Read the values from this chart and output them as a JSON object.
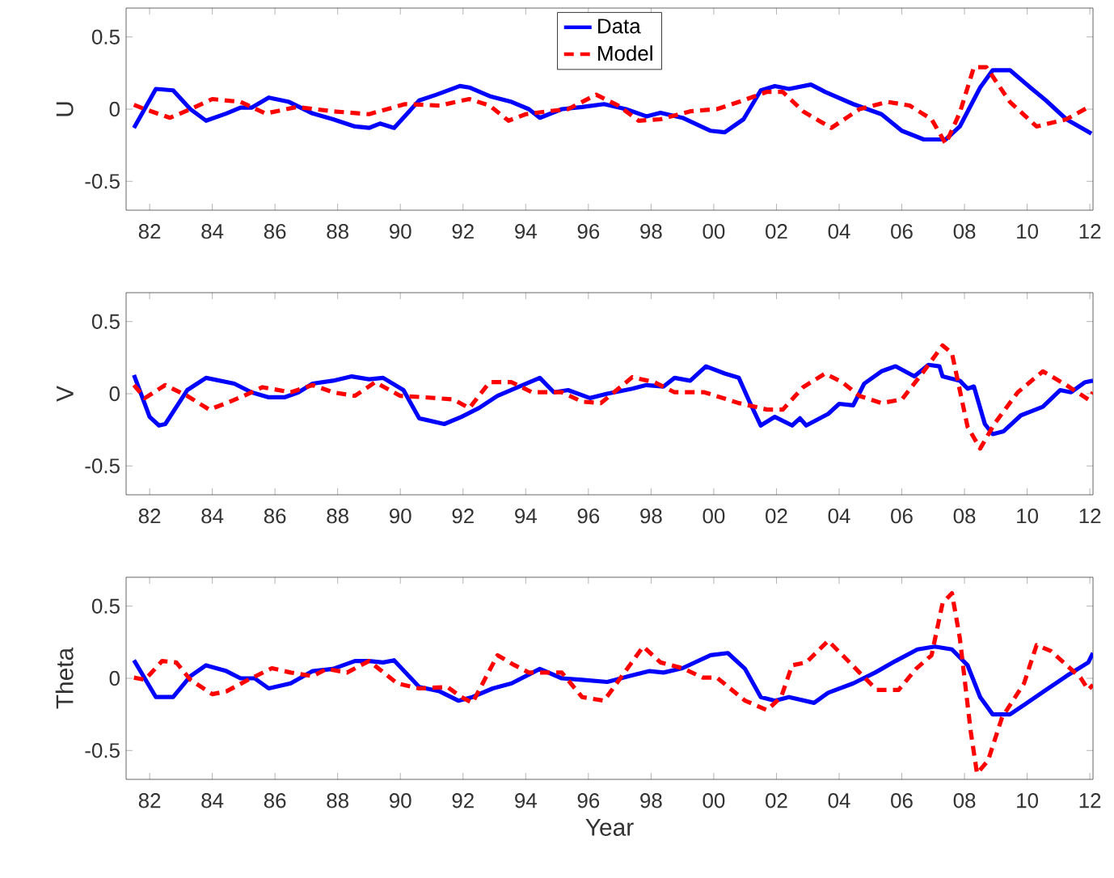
{
  "chart_data": [
    {
      "type": "line",
      "ylabel": "U",
      "legend": "top",
      "marker": "none",
      "xlim": [
        1981.25,
        2012.1
      ],
      "ylim": [
        -0.7,
        0.7
      ],
      "xticks": [
        {
          "value": 1982,
          "label": "82"
        },
        {
          "value": 1984,
          "label": "84"
        },
        {
          "value": 1986,
          "label": "86"
        },
        {
          "value": 1988,
          "label": "88"
        },
        {
          "value": 1990,
          "label": "90"
        },
        {
          "value": 1992,
          "label": "92"
        },
        {
          "value": 1994,
          "label": "94"
        },
        {
          "value": 1996,
          "label": "96"
        },
        {
          "value": 1998,
          "label": "98"
        },
        {
          "value": 2000,
          "label": "00"
        },
        {
          "value": 2002,
          "label": "02"
        },
        {
          "value": 2004,
          "label": "04"
        },
        {
          "value": 2006,
          "label": "06"
        },
        {
          "value": 2008,
          "label": "08"
        },
        {
          "value": 2010,
          "label": "10"
        },
        {
          "value": 2012,
          "label": "12"
        }
      ],
      "yticks": [
        -0.5,
        0,
        0.5
      ],
      "series": [
        {
          "name": "Data",
          "color": "#0000ff",
          "line_style": "solid",
          "x": [
            1981.5,
            1982.2,
            1982.75,
            1983.3,
            1983.8,
            1984.45,
            1984.9,
            1985.25,
            1985.8,
            1986.45,
            1987.2,
            1987.85,
            1988.55,
            1989.0,
            1989.35,
            1989.8,
            1990.6,
            1991.15,
            1991.9,
            1992.2,
            1992.85,
            1993.55,
            1994.1,
            1994.45,
            1995.15,
            1995.8,
            1996.5,
            1997.2,
            1997.85,
            1998.3,
            1999.0,
            1999.9,
            2000.35,
            2000.95,
            2001.5,
            2001.95,
            2002.4,
            2003.1,
            2003.55,
            2004.45,
            2005.35,
            2006.0,
            2006.7,
            2007.4,
            2007.85,
            2008.5,
            2008.9,
            2009.45,
            2010.1,
            2010.6,
            2011.25,
            2012.05
          ],
          "values": [
            -0.13,
            0.14,
            0.13,
            0,
            -0.08,
            -0.03,
            0.01,
            0.01,
            0.08,
            0.05,
            -0.03,
            -0.07,
            -0.12,
            -0.13,
            -0.1,
            -0.13,
            0.06,
            0.1,
            0.16,
            0.15,
            0.09,
            0.05,
            0,
            -0.06,
            0,
            0.015,
            0.035,
            0,
            -0.05,
            -0.025,
            -0.06,
            -0.15,
            -0.16,
            -0.07,
            0.13,
            0.16,
            0.14,
            0.17,
            0.12,
            0.035,
            -0.035,
            -0.15,
            -0.21,
            -0.21,
            -0.12,
            0.15,
            0.27,
            0.27,
            0.15,
            0.06,
            -0.07,
            -0.17
          ]
        },
        {
          "name": "Model",
          "color": "#ff0000",
          "line_style": "dashed",
          "x": [
            1981.5,
            1981.85,
            1982.65,
            1983.3,
            1984.0,
            1984.9,
            1985.7,
            1986.7,
            1987.85,
            1989.0,
            1990.15,
            1991.25,
            1992.2,
            1992.85,
            1993.45,
            1994.0,
            1994.7,
            1995.35,
            1996.25,
            1996.95,
            1997.6,
            1998.3,
            1999.25,
            2000.1,
            2000.8,
            2001.7,
            2002.2,
            2002.85,
            2003.75,
            2004.65,
            2005.55,
            2006.25,
            2006.95,
            2007.4,
            2007.85,
            2008.3,
            2008.7,
            2009.45,
            2010.3,
            2011.25,
            2012.05
          ],
          "values": [
            0.03,
            0,
            -0.06,
            0,
            0.07,
            0.05,
            -0.03,
            0.015,
            -0.015,
            -0.035,
            0.035,
            0.025,
            0.07,
            0.025,
            -0.08,
            -0.035,
            -0.015,
            0,
            0.1,
            0.025,
            -0.08,
            -0.07,
            -0.015,
            0,
            0.05,
            0.12,
            0.12,
            -0.015,
            -0.13,
            0,
            0.05,
            0.025,
            -0.07,
            -0.24,
            -0.025,
            0.29,
            0.29,
            0.05,
            -0.12,
            -0.07,
            0.025
          ]
        }
      ]
    },
    {
      "type": "line",
      "ylabel": "V",
      "marker": "none",
      "xlim": [
        1981.25,
        2012.1
      ],
      "ylim": [
        -0.7,
        0.7
      ],
      "xticks": [
        {
          "value": 1982,
          "label": "82"
        },
        {
          "value": 1984,
          "label": "84"
        },
        {
          "value": 1986,
          "label": "86"
        },
        {
          "value": 1988,
          "label": "88"
        },
        {
          "value": 1990,
          "label": "90"
        },
        {
          "value": 1992,
          "label": "92"
        },
        {
          "value": 1994,
          "label": "94"
        },
        {
          "value": 1996,
          "label": "96"
        },
        {
          "value": 1998,
          "label": "98"
        },
        {
          "value": 2000,
          "label": "00"
        },
        {
          "value": 2002,
          "label": "02"
        },
        {
          "value": 2004,
          "label": "04"
        },
        {
          "value": 2006,
          "label": "06"
        },
        {
          "value": 2008,
          "label": "08"
        },
        {
          "value": 2010,
          "label": "10"
        },
        {
          "value": 2012,
          "label": "12"
        }
      ],
      "yticks": [
        -0.5,
        0,
        0.5
      ],
      "series": [
        {
          "color": "#0000ff",
          "line_style": "solid",
          "x": [
            1981.5,
            1982.0,
            1982.3,
            1982.5,
            1983.2,
            1983.8,
            1984.7,
            1985.25,
            1985.8,
            1986.3,
            1986.75,
            1987.2,
            1987.85,
            1988.45,
            1989.0,
            1989.45,
            1990.1,
            1990.6,
            1991.4,
            1991.95,
            1992.5,
            1993.1,
            1993.75,
            1994.45,
            1994.9,
            1995.35,
            1996.05,
            1996.6,
            1997.4,
            1997.85,
            1998.4,
            1998.75,
            1999.25,
            1999.75,
            2000.35,
            2000.8,
            2001.15,
            2001.5,
            2001.95,
            2002.5,
            2002.75,
            2002.95,
            2003.65,
            2004.0,
            2004.45,
            2004.8,
            2005.35,
            2005.8,
            2006.4,
            2006.85,
            2007.2,
            2007.3,
            2007.85,
            2008.1,
            2008.3,
            2008.65,
            2008.9,
            2009.25,
            2009.8,
            2010.5,
            2011.05,
            2011.4,
            2011.85,
            2012.1
          ],
          "values": [
            0.13,
            -0.16,
            -0.22,
            -0.21,
            0.025,
            0.11,
            0.07,
            0.01,
            -0.025,
            -0.025,
            0.01,
            0.07,
            0.09,
            0.12,
            0.1,
            0.11,
            0.025,
            -0.17,
            -0.21,
            -0.16,
            -0.1,
            -0.015,
            0.045,
            0.11,
            0.01,
            0.025,
            -0.03,
            0,
            0.035,
            0.06,
            0.05,
            0.11,
            0.09,
            0.19,
            0.14,
            0.11,
            -0.06,
            -0.22,
            -0.16,
            -0.22,
            -0.17,
            -0.22,
            -0.14,
            -0.07,
            -0.08,
            0.07,
            0.155,
            0.19,
            0.12,
            0.2,
            0.19,
            0.12,
            0.09,
            0.035,
            0.05,
            -0.21,
            -0.28,
            -0.26,
            -0.15,
            -0.09,
            0.025,
            0.01,
            0.08,
            0.09
          ]
        },
        {
          "color": "#ff0000",
          "line_style": "dashed",
          "x": [
            1981.5,
            1981.85,
            1982.5,
            1983.2,
            1983.9,
            1984.45,
            1985.0,
            1985.6,
            1986.5,
            1987.2,
            1987.85,
            1988.55,
            1989.2,
            1990.0,
            1990.8,
            1991.7,
            1992.2,
            1992.85,
            1993.55,
            1994.2,
            1995.15,
            1995.8,
            1996.4,
            1997.4,
            1998.1,
            1998.75,
            1999.7,
            2000.8,
            2001.7,
            2002.2,
            2002.85,
            2003.55,
            2004.1,
            2004.65,
            2005.35,
            2006.0,
            2006.7,
            2007.3,
            2007.6,
            2008.1,
            2008.5,
            2008.95,
            2009.7,
            2010.5,
            2011.25,
            2011.95,
            2012.1
          ],
          "values": [
            0.06,
            -0.03,
            0.06,
            -0.015,
            -0.11,
            -0.065,
            -0.015,
            0.045,
            0.01,
            0.06,
            0.01,
            -0.015,
            0.08,
            -0.015,
            -0.025,
            -0.04,
            -0.1,
            0.08,
            0.08,
            0.01,
            0.01,
            -0.055,
            -0.065,
            0.115,
            0.08,
            0.01,
            0.01,
            -0.065,
            -0.11,
            -0.11,
            0.045,
            0.14,
            0.08,
            -0.015,
            -0.065,
            -0.04,
            0.155,
            0.335,
            0.28,
            -0.23,
            -0.38,
            -0.21,
            0.01,
            0.155,
            0.06,
            -0.04,
            0.01
          ]
        }
      ]
    },
    {
      "type": "line",
      "ylabel": "Theta",
      "xlabel": "Year",
      "marker": "none",
      "xlim": [
        1981.25,
        2012.1
      ],
      "ylim": [
        -0.7,
        0.7
      ],
      "xticks": [
        {
          "value": 1982,
          "label": "82"
        },
        {
          "value": 1984,
          "label": "84"
        },
        {
          "value": 1986,
          "label": "86"
        },
        {
          "value": 1988,
          "label": "88"
        },
        {
          "value": 1990,
          "label": "90"
        },
        {
          "value": 1992,
          "label": "92"
        },
        {
          "value": 1994,
          "label": "94"
        },
        {
          "value": 1996,
          "label": "96"
        },
        {
          "value": 1998,
          "label": "98"
        },
        {
          "value": 2000,
          "label": "00"
        },
        {
          "value": 2002,
          "label": "02"
        },
        {
          "value": 2004,
          "label": "04"
        },
        {
          "value": 2006,
          "label": "06"
        },
        {
          "value": 2008,
          "label": "08"
        },
        {
          "value": 2010,
          "label": "10"
        },
        {
          "value": 2012,
          "label": "12"
        }
      ],
      "yticks": [
        -0.5,
        0,
        0.5
      ],
      "series": [
        {
          "color": "#0000ff",
          "line_style": "solid",
          "x": [
            1981.5,
            1982.2,
            1982.75,
            1983.3,
            1983.8,
            1984.45,
            1984.9,
            1985.35,
            1985.8,
            1986.5,
            1987.2,
            1987.85,
            1988.55,
            1989.0,
            1989.45,
            1989.8,
            1990.6,
            1991.25,
            1991.85,
            1992.3,
            1992.95,
            1993.55,
            1994.45,
            1995.15,
            1995.8,
            1996.6,
            1997.3,
            1997.95,
            1998.4,
            1999.0,
            1999.9,
            2000.45,
            2001.0,
            2001.5,
            2001.95,
            2002.4,
            2003.2,
            2003.65,
            2004.45,
            2005.15,
            2005.8,
            2006.5,
            2007.05,
            2007.6,
            2008.1,
            2008.5,
            2008.9,
            2009.45,
            2010.1,
            2010.6,
            2011.25,
            2011.95,
            2012.1
          ],
          "values": [
            0.125,
            -0.13,
            -0.13,
            0.015,
            0.09,
            0.05,
            0,
            0,
            -0.07,
            -0.035,
            0.05,
            0.065,
            0.12,
            0.12,
            0.11,
            0.125,
            -0.06,
            -0.09,
            -0.155,
            -0.13,
            -0.07,
            -0.035,
            0.065,
            0,
            -0.01,
            -0.025,
            0.015,
            0.05,
            0.04,
            0.07,
            0.16,
            0.175,
            0.065,
            -0.13,
            -0.155,
            -0.13,
            -0.17,
            -0.1,
            -0.035,
            0.04,
            0.12,
            0.2,
            0.22,
            0.2,
            0.09,
            -0.13,
            -0.25,
            -0.25,
            -0.155,
            -0.08,
            0.015,
            0.11,
            0.175
          ]
        },
        {
          "color": "#ff0000",
          "line_style": "dashed",
          "x": [
            1981.5,
            1981.85,
            1982.4,
            1982.85,
            1983.3,
            1984.0,
            1984.45,
            1985.15,
            1985.9,
            1986.5,
            1987.2,
            1987.65,
            1988.3,
            1989.0,
            1989.9,
            1990.6,
            1991.5,
            1991.95,
            1992.3,
            1993.1,
            1993.65,
            1994.1,
            1995.15,
            1995.8,
            1996.5,
            1997.2,
            1997.75,
            1998.3,
            1999.0,
            1999.65,
            2000.1,
            2001.0,
            2001.7,
            2002.15,
            2002.5,
            2002.95,
            2003.65,
            2004.2,
            2004.65,
            2005.2,
            2005.9,
            2006.45,
            2006.95,
            2007.3,
            2007.6,
            2007.85,
            2008.2,
            2008.4,
            2008.75,
            2009.2,
            2009.9,
            2010.3,
            2010.75,
            2011.7,
            2011.95,
            2012.1
          ],
          "values": [
            0.005,
            -0.01,
            0.12,
            0.11,
            -0.01,
            -0.11,
            -0.09,
            -0.01,
            0.07,
            0.04,
            0.015,
            0.065,
            0.04,
            0.12,
            -0.035,
            -0.07,
            -0.06,
            -0.13,
            -0.17,
            0.16,
            0.09,
            0.04,
            0.04,
            -0.13,
            -0.155,
            0.055,
            0.22,
            0.11,
            0.07,
            0.005,
            0.005,
            -0.155,
            -0.22,
            -0.13,
            0.09,
            0.11,
            0.26,
            0.14,
            0.04,
            -0.08,
            -0.08,
            0.065,
            0.16,
            0.52,
            0.59,
            0.28,
            -0.37,
            -0.66,
            -0.57,
            -0.27,
            -0.035,
            0.23,
            0.19,
            0.005,
            -0.08,
            -0.045
          ]
        }
      ]
    }
  ]
}
